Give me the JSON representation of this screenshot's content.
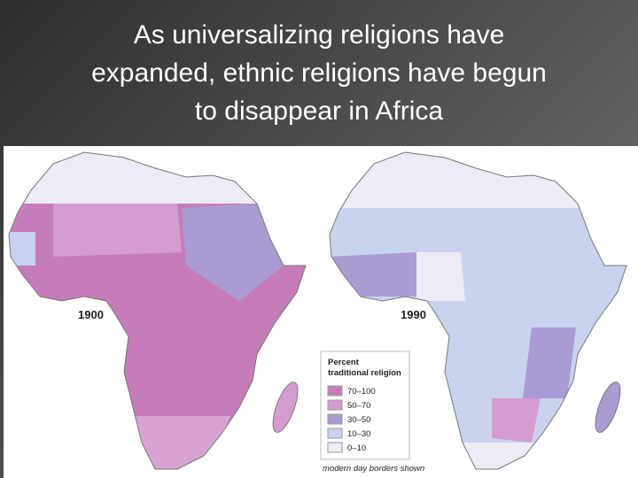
{
  "title_lines": [
    "As universalizing religions have",
    "expanded, ethnic religions have begun",
    "to disappear in Africa"
  ],
  "maps": [
    {
      "label": "1900"
    },
    {
      "label": "1990"
    }
  ],
  "legend": {
    "title_lines": [
      "Percent",
      "traditional religion"
    ],
    "items": [
      {
        "label": "70–100",
        "color": "#c67cb9"
      },
      {
        "label": "50–70",
        "color": "#d59dcf"
      },
      {
        "label": "30–50",
        "color": "#aa9bd2"
      },
      {
        "label": "10–30",
        "color": "#c9d3ee"
      },
      {
        "label": "0–10",
        "color": "#eeebf6"
      }
    ],
    "note": "modern day borders shown"
  }
}
